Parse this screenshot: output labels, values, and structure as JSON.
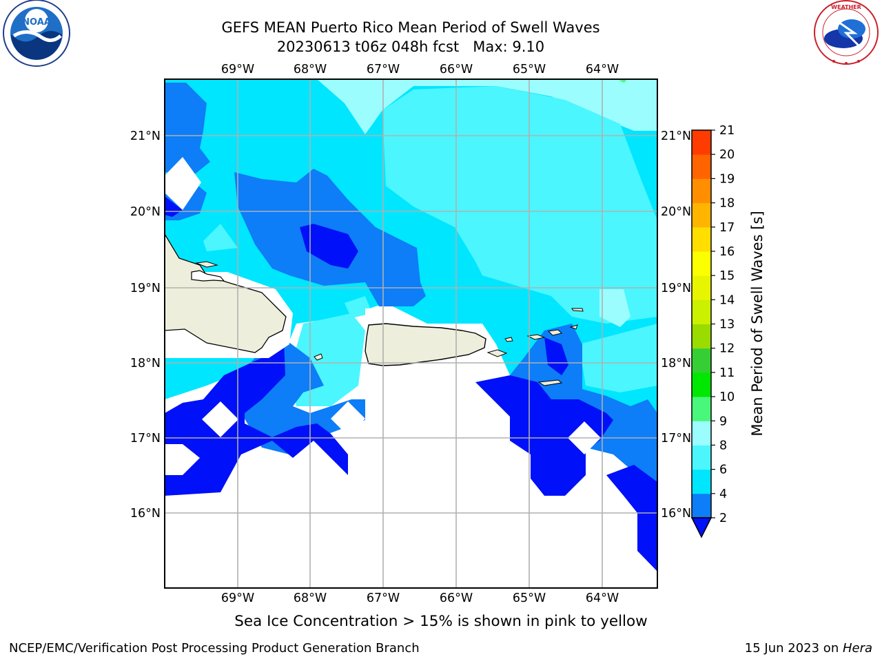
{
  "header": {
    "title_line1": "GEFS MEAN Puerto Rico Mean Period of Swell Waves",
    "title_line2": "20230613 t06z 048h fcst   Max: 9.10"
  },
  "logos": {
    "left": "noaa-logo",
    "right": "nws-logo"
  },
  "map": {
    "lon_labels": [
      "69°W",
      "68°W",
      "67°W",
      "66°W",
      "65°W",
      "64°W"
    ],
    "lat_labels": [
      "21°N",
      "20°N",
      "19°N",
      "18°N",
      "17°N",
      "16°N"
    ],
    "colors": {
      "land": "#eeeedc",
      "coastline": "#000000",
      "grid": "#b0b0b0"
    }
  },
  "colorbar": {
    "label": "Mean Period of Swell Waves [s]",
    "ticks": [
      "2",
      "4",
      "6",
      "8",
      "9",
      "10",
      "11",
      "12",
      "13",
      "14",
      "15",
      "16",
      "17",
      "18",
      "19",
      "20",
      "21"
    ],
    "colors": [
      "#0d7df8",
      "#00e6ff",
      "#4bf6ff",
      "#9cfdff",
      "#49f77b",
      "#00e800",
      "#35cf35",
      "#9bdc00",
      "#cbf000",
      "#e8f500",
      "#fbff00",
      "#ffde00",
      "#ffb400",
      "#ff8f00",
      "#ff6400",
      "#ff3c00",
      "#ff0000"
    ],
    "under_color": "#0010f8"
  },
  "chart_data": {
    "type": "heatmap",
    "title": "GEFS MEAN Puerto Rico Mean Period of Swell Waves",
    "subtitle": "20230613 t06z 048h fcst   Max: 9.10",
    "max": 9.1,
    "lon_range": [
      -70,
      -63.25
    ],
    "lat_range": [
      15,
      21.75
    ],
    "levels": [
      2,
      4,
      6,
      8,
      9,
      10,
      11,
      12,
      13,
      14,
      15,
      16,
      17,
      18,
      19,
      20,
      21
    ],
    "units": "s"
  },
  "footer": {
    "note": "Sea Ice Concentration > 15% is shown in pink to yellow",
    "left": "NCEP/EMC/Verification Post Processing Product Generation Branch",
    "date": "15 Jun 2023 on ",
    "host": "Hera"
  }
}
